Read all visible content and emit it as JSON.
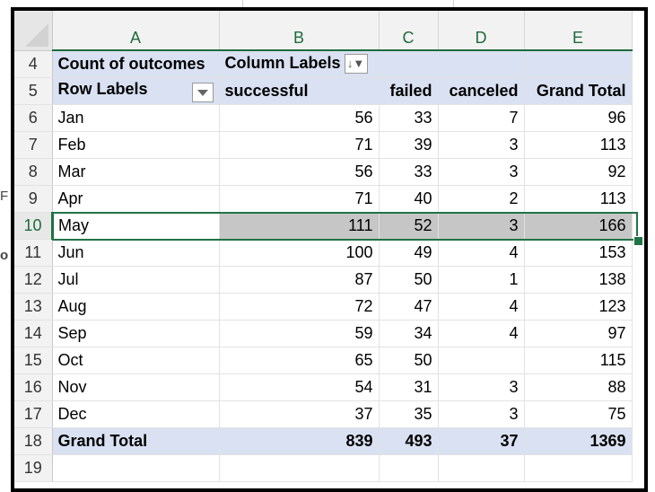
{
  "columns": [
    "A",
    "B",
    "C",
    "D",
    "E"
  ],
  "header_rows": [
    {
      "row": "4",
      "a": "Count of outcomes",
      "b": "Column Labels",
      "c": "",
      "d": "",
      "e": ""
    },
    {
      "row": "5",
      "a": "Row Labels",
      "b": "successful",
      "c": "failed",
      "d": "canceled",
      "e": "Grand Total"
    }
  ],
  "data_rows": [
    {
      "row": "6",
      "label": "Jan",
      "successful": "56",
      "failed": "33",
      "canceled": "7",
      "total": "96"
    },
    {
      "row": "7",
      "label": "Feb",
      "successful": "71",
      "failed": "39",
      "canceled": "3",
      "total": "113"
    },
    {
      "row": "8",
      "label": "Mar",
      "successful": "56",
      "failed": "33",
      "canceled": "3",
      "total": "92"
    },
    {
      "row": "9",
      "label": "Apr",
      "successful": "71",
      "failed": "40",
      "canceled": "2",
      "total": "113"
    },
    {
      "row": "10",
      "label": "May",
      "successful": "111",
      "failed": "52",
      "canceled": "3",
      "total": "166"
    },
    {
      "row": "11",
      "label": "Jun",
      "successful": "100",
      "failed": "49",
      "canceled": "4",
      "total": "153"
    },
    {
      "row": "12",
      "label": "Jul",
      "successful": "87",
      "failed": "50",
      "canceled": "1",
      "total": "138"
    },
    {
      "row": "13",
      "label": "Aug",
      "successful": "72",
      "failed": "47",
      "canceled": "4",
      "total": "123"
    },
    {
      "row": "14",
      "label": "Sep",
      "successful": "59",
      "failed": "34",
      "canceled": "4",
      "total": "97"
    },
    {
      "row": "15",
      "label": "Oct",
      "successful": "65",
      "failed": "50",
      "canceled": "",
      "total": "115"
    },
    {
      "row": "16",
      "label": "Nov",
      "successful": "54",
      "failed": "31",
      "canceled": "3",
      "total": "88"
    },
    {
      "row": "17",
      "label": "Dec",
      "successful": "37",
      "failed": "35",
      "canceled": "3",
      "total": "75"
    }
  ],
  "grand_total_row": {
    "row": "18",
    "label": "Grand Total",
    "successful": "839",
    "failed": "493",
    "canceled": "37",
    "total": "1369"
  },
  "next_row": "19",
  "selected_row": "10",
  "edge_glyphs": [
    "F",
    "o"
  ],
  "icons": {
    "row_labels_dropdown": "chevron-down-icon",
    "column_labels_filter": "sort-filter-icon"
  },
  "colors": {
    "pivot_header_band": "#d9e1f2",
    "selection": "#217346",
    "highlight": "#c6c6c6"
  }
}
